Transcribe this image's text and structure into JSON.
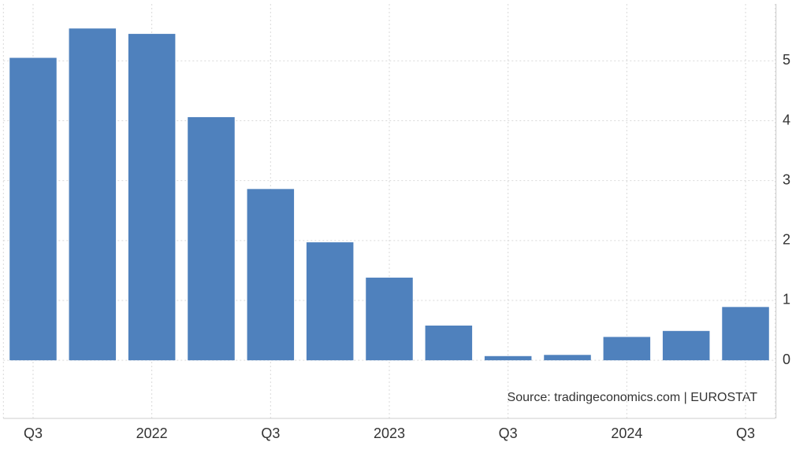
{
  "chart_data": {
    "type": "bar",
    "categories": [
      "Q3",
      null,
      "2022",
      null,
      "Q3",
      null,
      "2023",
      null,
      "Q3",
      null,
      "2024",
      null,
      "Q3"
    ],
    "values": [
      5.05,
      5.54,
      5.45,
      4.06,
      2.86,
      1.97,
      1.38,
      0.58,
      0.07,
      0.09,
      0.39,
      0.49,
      0.89
    ],
    "color": "#4f81bd",
    "ylim": [
      -0.97,
      5.95
    ],
    "yticks": [
      0,
      1,
      2,
      3,
      4,
      5
    ],
    "grid": true,
    "annotation": "Source: tradingeconomics.com | EUROSTAT"
  }
}
